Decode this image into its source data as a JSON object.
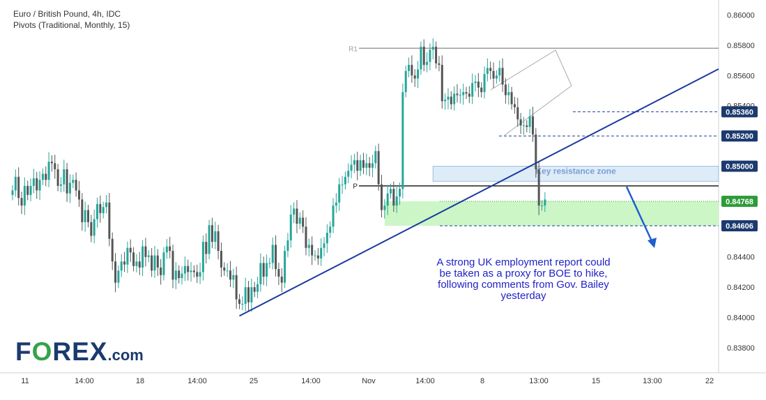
{
  "header": {
    "title": "Euro / British Pound, 4h, IDC",
    "indicator": "Pivots (Traditional, Monthly, 15)"
  },
  "logo": {
    "text_big_pre": "F",
    "text_big_o": "O",
    "text_big_post": "REX",
    "text_dom": ".com"
  },
  "colors": {
    "up": "#26a69a",
    "down": "#555555",
    "trendline": "#1b3a9f",
    "badge_bg": "#1b3a6f",
    "green_badge": "#2e9b3a",
    "zone_fill": "#dbeaf7",
    "support_fill": "#c6f5c0",
    "annotation_text": "#2121c8"
  },
  "chart_data": {
    "type": "candlestick",
    "symbol": "Euro / British Pound, 4h, IDC",
    "ylim": [
      0.8368,
      0.8603
    ],
    "y_ticks": [
      "0.86000",
      "0.85800",
      "0.85600",
      "0.85400",
      "0.85200",
      "0.85000",
      "0.84768",
      "0.84400",
      "0.84200",
      "0.84000",
      "0.83800"
    ],
    "x_ticks": [
      "11",
      "14:00",
      "18",
      "14:00",
      "25",
      "14:00",
      "Nov",
      "14:00",
      "8",
      "13:00",
      "15",
      "13:00",
      "22"
    ],
    "pivots": [
      {
        "label": "R1",
        "value": 0.8578
      },
      {
        "label": "P",
        "value": 0.8487
      }
    ],
    "price_labels": [
      {
        "text": "0.85360",
        "value": 0.8536,
        "style": "badge"
      },
      {
        "text": "0.85200",
        "value": 0.852,
        "style": "badge"
      },
      {
        "text": "0.85000",
        "value": 0.85,
        "style": "badge"
      },
      {
        "text": "0.84768",
        "value": 0.84768,
        "style": "green"
      },
      {
        "text": "0.84606",
        "value": 0.84606,
        "style": "badge"
      }
    ],
    "zones": [
      {
        "name": "Key resistance zone",
        "from": 0.85,
        "to": 0.849,
        "start_index": 139
      },
      {
        "name": "",
        "from": 0.84768,
        "to": 0.84606,
        "start_index": 123
      }
    ],
    "trendline": {
      "from": {
        "index": 75,
        "value": 0.8401
      },
      "to": {
        "index": 198,
        "value": 0.8564
      }
    },
    "annotation": [
      "A strong UK employment report could",
      "be taken as a proxy for BOE to hike,",
      "following comments from Gov. Bailey",
      "yesterday"
    ],
    "closes": [
      0.8484,
      0.8493,
      0.8479,
      0.8474,
      0.8487,
      0.8481,
      0.8487,
      0.8492,
      0.8484,
      0.8491,
      0.8495,
      0.8491,
      0.8503,
      0.8502,
      0.8498,
      0.8487,
      0.8488,
      0.8498,
      0.8482,
      0.8489,
      0.8491,
      0.8484,
      0.8478,
      0.8463,
      0.8471,
      0.8463,
      0.8454,
      0.8465,
      0.8475,
      0.8469,
      0.8473,
      0.8476,
      0.8452,
      0.8437,
      0.8423,
      0.8431,
      0.8437,
      0.8435,
      0.8446,
      0.8443,
      0.8434,
      0.8437,
      0.8433,
      0.8447,
      0.844,
      0.8441,
      0.8431,
      0.8441,
      0.8433,
      0.8428,
      0.8443,
      0.8447,
      0.8444,
      0.8425,
      0.8431,
      0.8426,
      0.8429,
      0.8434,
      0.843,
      0.8431,
      0.843,
      0.8427,
      0.843,
      0.845,
      0.8442,
      0.8461,
      0.845,
      0.8457,
      0.8444,
      0.8433,
      0.8431,
      0.8431,
      0.8425,
      0.8428,
      0.8412,
      0.8409,
      0.8409,
      0.842,
      0.841,
      0.842,
      0.8417,
      0.8422,
      0.8436,
      0.8427,
      0.8436,
      0.8436,
      0.8448,
      0.8432,
      0.8427,
      0.8423,
      0.8444,
      0.8451,
      0.8468,
      0.8472,
      0.8462,
      0.8466,
      0.846,
      0.8446,
      0.8448,
      0.8441,
      0.8441,
      0.8439,
      0.8446,
      0.8449,
      0.8456,
      0.846,
      0.8474,
      0.8476,
      0.8488,
      0.8488,
      0.8493,
      0.8497,
      0.8501,
      0.8504,
      0.8497,
      0.8504,
      0.8499,
      0.8502,
      0.8499,
      0.8502,
      0.851,
      0.8488,
      0.8471,
      0.8474,
      0.8482,
      0.8485,
      0.8474,
      0.848,
      0.8485,
      0.8549,
      0.8563,
      0.8567,
      0.856,
      0.8558,
      0.8564,
      0.8579,
      0.8567,
      0.8569,
      0.8577,
      0.8579,
      0.8568,
      0.8567,
      0.8543,
      0.8544,
      0.8546,
      0.8541,
      0.8548,
      0.8547,
      0.8547,
      0.8549,
      0.8548,
      0.8546,
      0.8555,
      0.8556,
      0.8552,
      0.8549,
      0.8561,
      0.8565,
      0.8563,
      0.8558,
      0.856,
      0.8565,
      0.8554,
      0.8547,
      0.8549,
      0.8541,
      0.8539,
      0.8531,
      0.8527,
      0.8527,
      0.8526,
      0.8533,
      0.8521,
      0.8498,
      0.8474,
      0.8474,
      0.8478
    ]
  }
}
